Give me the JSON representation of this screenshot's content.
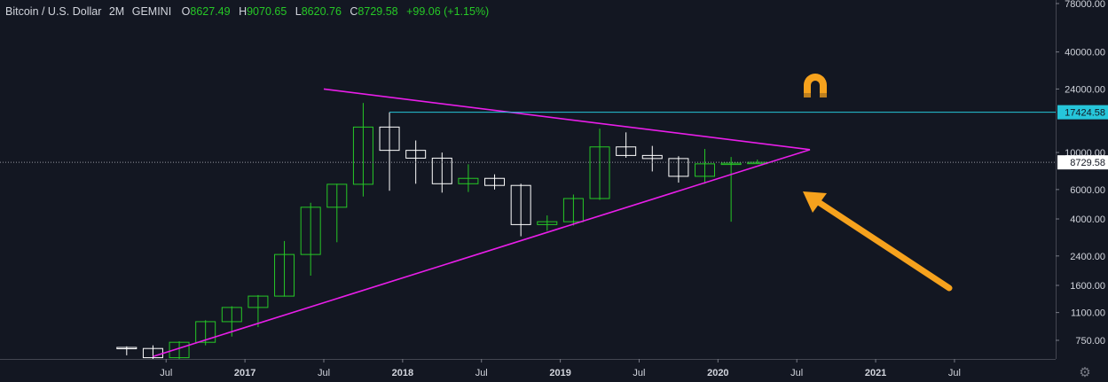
{
  "header": {
    "symbol": "Bitcoin / U.S. Dollar",
    "interval": "2M",
    "exchange": "GEMINI",
    "o_label": "O",
    "o_value": "8627.49",
    "h_label": "H",
    "h_value": "9070.65",
    "l_label": "L",
    "l_value": "8620.76",
    "c_label": "C",
    "c_value": "8729.58",
    "change": "+99.06 (+1.15%)"
  },
  "colors": {
    "background": "#131722",
    "axis_text": "#d1d4dc",
    "up": "#26c826",
    "down": "#ffffff",
    "triangle": "#e91ee9",
    "resistance": "#26c6da",
    "arrow": "#f6a21d",
    "magnet": "#f6a21d"
  },
  "icons": {
    "magnet": "magnet-icon",
    "settings": "gear-icon"
  },
  "chart_data": {
    "type": "candlestick",
    "scale": "log",
    "ylim": [
      580,
      78000
    ],
    "y_ticks": [
      {
        "value": 750,
        "label": "750.00"
      },
      {
        "value": 1100,
        "label": "1100.00"
      },
      {
        "value": 1600,
        "label": "1600.00"
      },
      {
        "value": 2400,
        "label": "2400.00"
      },
      {
        "value": 4000,
        "label": "4000.00"
      },
      {
        "value": 6000,
        "label": "6000.00"
      },
      {
        "value": 10000,
        "label": "10000.00"
      },
      {
        "value": 24000,
        "label": "24000.00"
      },
      {
        "value": 40000,
        "label": "40000.00"
      },
      {
        "value": 78000,
        "label": "78000.00"
      }
    ],
    "x_ticks": [
      {
        "date": "2016-07",
        "label": "Jul"
      },
      {
        "date": "2017-01",
        "label": "2017"
      },
      {
        "date": "2017-07",
        "label": "Jul"
      },
      {
        "date": "2018-01",
        "label": "2018"
      },
      {
        "date": "2018-07",
        "label": "Jul"
      },
      {
        "date": "2019-01",
        "label": "2019"
      },
      {
        "date": "2019-07",
        "label": "Jul"
      },
      {
        "date": "2020-01",
        "label": "2020"
      },
      {
        "date": "2020-07",
        "label": "Jul"
      },
      {
        "date": "2021-01",
        "label": "2021"
      },
      {
        "date": "2021-07",
        "label": "Jul"
      }
    ],
    "x_range": [
      "2016-03",
      "2021-12"
    ],
    "candles": [
      {
        "date": "2016-04",
        "open": 680,
        "high": 690,
        "low": 610,
        "close": 670
      },
      {
        "date": "2016-06",
        "open": 670,
        "high": 700,
        "low": 570,
        "close": 590
      },
      {
        "date": "2016-08",
        "open": 590,
        "high": 740,
        "low": 560,
        "close": 730
      },
      {
        "date": "2016-10",
        "open": 730,
        "high": 990,
        "low": 700,
        "close": 970
      },
      {
        "date": "2016-12",
        "open": 970,
        "high": 1200,
        "low": 790,
        "close": 1180
      },
      {
        "date": "2017-02",
        "open": 1180,
        "high": 1400,
        "low": 900,
        "close": 1380
      },
      {
        "date": "2017-04",
        "open": 1380,
        "high": 2950,
        "low": 1370,
        "close": 2450
      },
      {
        "date": "2017-06",
        "open": 2450,
        "high": 5000,
        "low": 1830,
        "close": 4700
      },
      {
        "date": "2017-08",
        "open": 4700,
        "high": 6500,
        "low": 2900,
        "close": 6450
      },
      {
        "date": "2017-10",
        "open": 6450,
        "high": 19800,
        "low": 5450,
        "close": 14200
      },
      {
        "date": "2017-12",
        "open": 14200,
        "high": 17400,
        "low": 5900,
        "close": 10300
      },
      {
        "date": "2018-02",
        "open": 10300,
        "high": 11800,
        "low": 6500,
        "close": 9250
      },
      {
        "date": "2018-04",
        "open": 9250,
        "high": 9990,
        "low": 5750,
        "close": 6500
      },
      {
        "date": "2018-06",
        "open": 6500,
        "high": 8500,
        "low": 5800,
        "close": 7000
      },
      {
        "date": "2018-08",
        "open": 7000,
        "high": 7400,
        "low": 6000,
        "close": 6350
      },
      {
        "date": "2018-10",
        "open": 6350,
        "high": 6500,
        "low": 3150,
        "close": 3700
      },
      {
        "date": "2018-12",
        "open": 3700,
        "high": 4200,
        "low": 3400,
        "close": 3850
      },
      {
        "date": "2019-02",
        "open": 3850,
        "high": 5600,
        "low": 3650,
        "close": 5300
      },
      {
        "date": "2019-04",
        "open": 5300,
        "high": 13900,
        "low": 5200,
        "close": 10800
      },
      {
        "date": "2019-06",
        "open": 10800,
        "high": 13200,
        "low": 9300,
        "close": 9600
      },
      {
        "date": "2019-08",
        "open": 9600,
        "high": 10950,
        "low": 7700,
        "close": 9200
      },
      {
        "date": "2019-10",
        "open": 9200,
        "high": 9500,
        "low": 6600,
        "close": 7200
      },
      {
        "date": "2019-12",
        "open": 7200,
        "high": 10500,
        "low": 6500,
        "close": 8550
      },
      {
        "date": "2020-02",
        "open": 8550,
        "high": 9400,
        "low": 3850,
        "close": 8630
      },
      {
        "date": "2020-04",
        "open": 8627.49,
        "high": 9070.65,
        "low": 8620.76,
        "close": 8729.58
      }
    ],
    "trendlines": [
      {
        "name": "upper",
        "from": {
          "date": "2017-07",
          "value": 24000
        },
        "to": {
          "date": "2020-08",
          "value": 10400
        }
      },
      {
        "name": "lower",
        "from": {
          "date": "2016-06",
          "value": 600
        },
        "to": {
          "date": "2020-08",
          "value": 10400
        }
      }
    ],
    "resistance": {
      "value": 17424.58,
      "label": "17424.58",
      "from": "2017-12"
    },
    "last_price": {
      "value": 8729.58,
      "label": "8729.58"
    }
  }
}
